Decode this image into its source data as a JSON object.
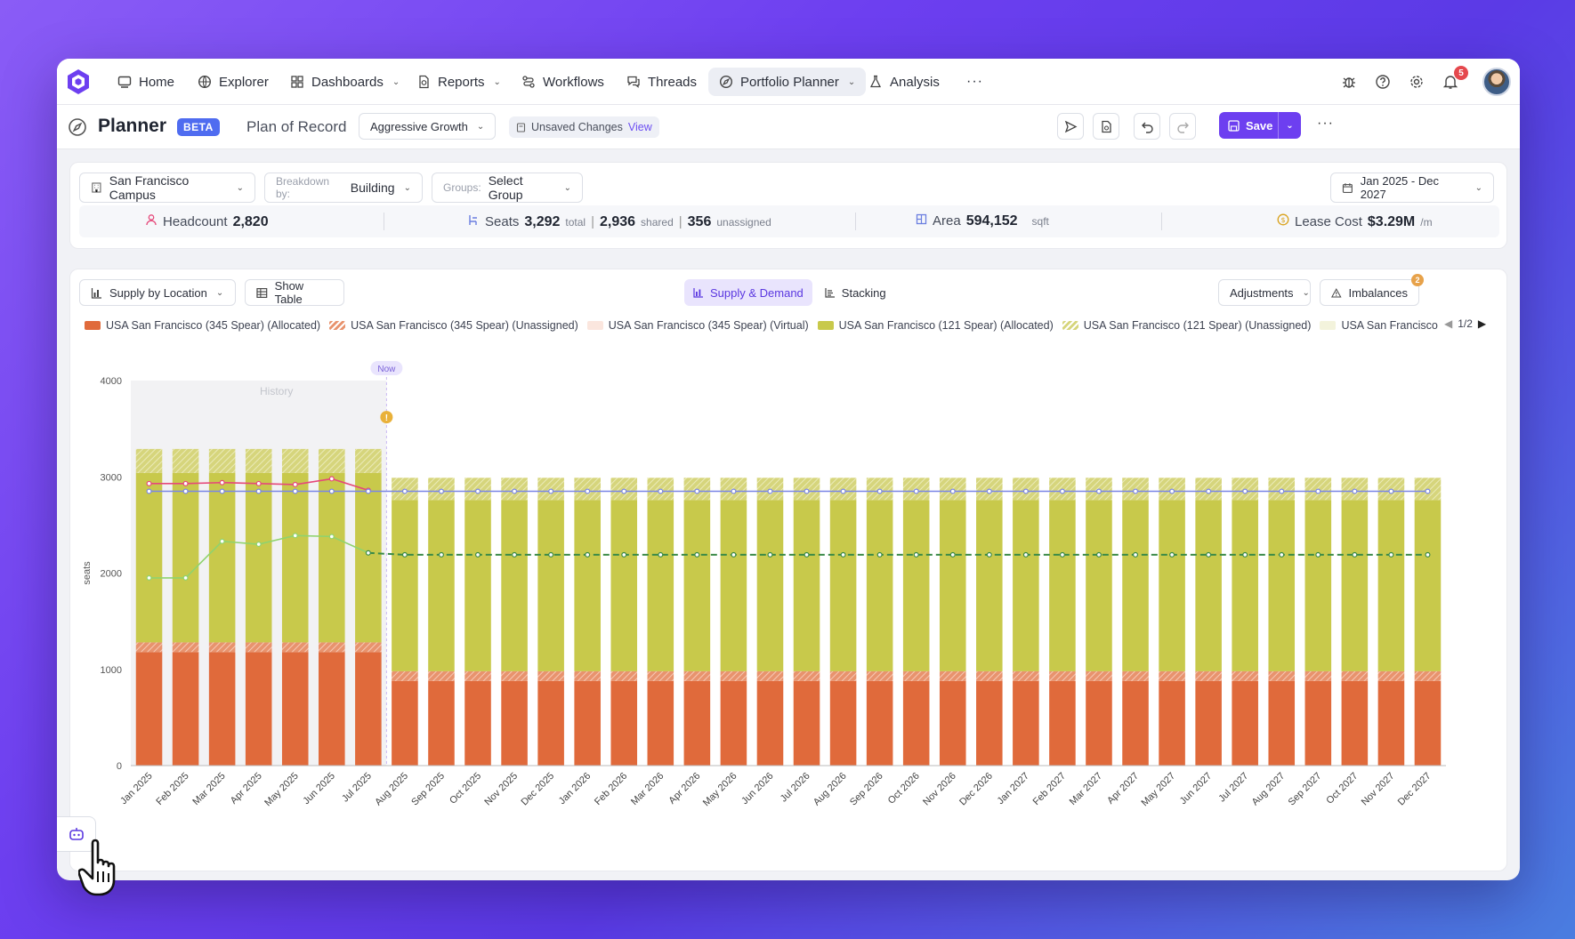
{
  "nav": {
    "items": [
      {
        "label": "Home"
      },
      {
        "label": "Explorer"
      },
      {
        "label": "Dashboards"
      },
      {
        "label": "Reports"
      },
      {
        "label": "Workflows"
      },
      {
        "label": "Threads"
      },
      {
        "label": "Portfolio Planner"
      },
      {
        "label": "Analysis"
      }
    ],
    "more": "···",
    "notification_count": "5"
  },
  "header": {
    "title": "Planner",
    "badge": "BETA",
    "plan_name": "Plan of Record",
    "scenario": "Aggressive Growth",
    "unsaved_text": "Unsaved Changes",
    "unsaved_link": "View",
    "save_label": "Save",
    "more": "···"
  },
  "filters": {
    "campus": "San Francisco Campus",
    "breakdown_label": "Breakdown by:",
    "breakdown_value": "Building",
    "groups_label": "Groups:",
    "groups_value": "Select Group",
    "date_range": "Jan 2025 - Dec 2027"
  },
  "stats": {
    "headcount_label": "Headcount",
    "headcount_value": "2,820",
    "seats_label": "Seats",
    "seats_total": "3,292",
    "seats_total_unit": "total",
    "seats_shared": "2,936",
    "seats_shared_unit": "shared",
    "seats_unassigned": "356",
    "seats_unassigned_unit": "unassigned",
    "area_label": "Area",
    "area_value": "594,152",
    "area_unit": "sqft",
    "lease_label": "Lease Cost",
    "lease_value": "$3.29M",
    "lease_unit": "/m"
  },
  "chart_toolbar": {
    "view_select": "Supply by Location",
    "show_table": "Show Table",
    "tab_supply_demand": "Supply & Demand",
    "tab_stacking": "Stacking",
    "adjustments": "Adjustments",
    "imbalances": "Imbalances",
    "imbalances_count": "2",
    "pager": "1/2"
  },
  "legend": [
    {
      "label": "USA San Francisco (345 Spear) (Allocated)",
      "color": "#e06a3b"
    },
    {
      "label": "USA San Francisco (345 Spear) (Unassigned)",
      "color": "#e8936e"
    },
    {
      "label": "USA San Francisco (345 Spear) (Virtual)",
      "color": "#fbe6de"
    },
    {
      "label": "USA San Francisco (121 Spear) (Allocated)",
      "color": "#c8c94b"
    },
    {
      "label": "USA San Francisco (121 Spear) (Unassigned)",
      "color": "#d6d57c"
    },
    {
      "label": "USA San Francisco",
      "color": "#f3f3dc"
    }
  ],
  "chart_data": {
    "type": "bar",
    "ylabel": "seats",
    "ylim": [
      0,
      4000
    ],
    "yticks": [
      "0",
      "1000",
      "2000",
      "3000",
      "4000"
    ],
    "history_label": "History",
    "now_label": "Now",
    "categories": [
      "Jan 2025",
      "Feb 2025",
      "Mar 2025",
      "Apr 2025",
      "May 2025",
      "Jun 2025",
      "Jul 2025",
      "Aug 2025",
      "Sep 2025",
      "Oct 2025",
      "Nov 2025",
      "Dec 2025",
      "Jan 2026",
      "Feb 2026",
      "Mar 2026",
      "Apr 2026",
      "May 2026",
      "Jun 2026",
      "Jul 2026",
      "Aug 2026",
      "Sep 2026",
      "Oct 2026",
      "Nov 2026",
      "Dec 2026",
      "Jan 2027",
      "Feb 2027",
      "Mar 2027",
      "Apr 2027",
      "May 2027",
      "Jun 2027",
      "Jul 2027",
      "Aug 2027",
      "Sep 2027",
      "Oct 2027",
      "Nov 2027",
      "Dec 2027"
    ],
    "series": [
      {
        "name": "USA San Francisco (345 Spear) (Allocated)",
        "color": "#e06a3b",
        "values": [
          1180,
          1180,
          1180,
          1180,
          1180,
          1180,
          1180,
          880,
          880,
          880,
          880,
          880,
          880,
          880,
          880,
          880,
          880,
          880,
          880,
          880,
          880,
          880,
          880,
          880,
          880,
          880,
          880,
          880,
          880,
          880,
          880,
          880,
          880,
          880,
          880,
          880
        ]
      },
      {
        "name": "USA San Francisco (345 Spear) (Unassigned)",
        "color": "#e8936e",
        "values": [
          100,
          100,
          100,
          100,
          100,
          100,
          100,
          100,
          100,
          100,
          100,
          100,
          100,
          100,
          100,
          100,
          100,
          100,
          100,
          100,
          100,
          100,
          100,
          100,
          100,
          100,
          100,
          100,
          100,
          100,
          100,
          100,
          100,
          100,
          100,
          100
        ]
      },
      {
        "name": "USA San Francisco (121 Spear) (Allocated)",
        "color": "#c8c94b",
        "values": [
          1760,
          1760,
          1760,
          1760,
          1760,
          1760,
          1760,
          1780,
          1780,
          1780,
          1780,
          1780,
          1780,
          1780,
          1780,
          1780,
          1780,
          1780,
          1780,
          1780,
          1780,
          1780,
          1780,
          1780,
          1780,
          1780,
          1780,
          1780,
          1780,
          1780,
          1780,
          1780,
          1780,
          1780,
          1780,
          1780
        ]
      },
      {
        "name": "USA San Francisco (121 Spear) (Unassigned)",
        "color": "#d6d57c",
        "values": [
          250,
          250,
          250,
          250,
          250,
          250,
          250,
          230,
          230,
          230,
          230,
          230,
          230,
          230,
          230,
          230,
          230,
          230,
          230,
          230,
          230,
          230,
          230,
          230,
          230,
          230,
          230,
          230,
          230,
          230,
          230,
          230,
          230,
          230,
          230,
          230
        ]
      }
    ],
    "lines": [
      {
        "color": "#e5487a",
        "style": "solid",
        "values": [
          2930,
          2930,
          2940,
          2930,
          2920,
          2980,
          2860
        ]
      },
      {
        "color": "#7a86e6",
        "style": "solid",
        "values": [
          2850,
          2850,
          2850,
          2850,
          2850,
          2850,
          2850,
          2850,
          2850,
          2850,
          2850,
          2850,
          2850,
          2850,
          2850,
          2850,
          2850,
          2850,
          2850,
          2850,
          2850,
          2850,
          2850,
          2850,
          2850,
          2850,
          2850,
          2850,
          2850,
          2850,
          2850,
          2850,
          2850,
          2850,
          2850,
          2850
        ]
      },
      {
        "color": "#8fd36e",
        "style": "solid",
        "values": [
          1950,
          1950,
          2330,
          2300,
          2390,
          2380,
          2210
        ]
      },
      {
        "color": "#3a8a47",
        "style": "dashed",
        "values": [
          null,
          null,
          null,
          null,
          null,
          null,
          2210,
          2190,
          2190,
          2190,
          2190,
          2190,
          2190,
          2190,
          2190,
          2190,
          2190,
          2190,
          2190,
          2190,
          2190,
          2190,
          2190,
          2190,
          2190,
          2190,
          2190,
          2190,
          2190,
          2190,
          2190,
          2190,
          2190,
          2190,
          2190,
          2190
        ]
      }
    ]
  }
}
